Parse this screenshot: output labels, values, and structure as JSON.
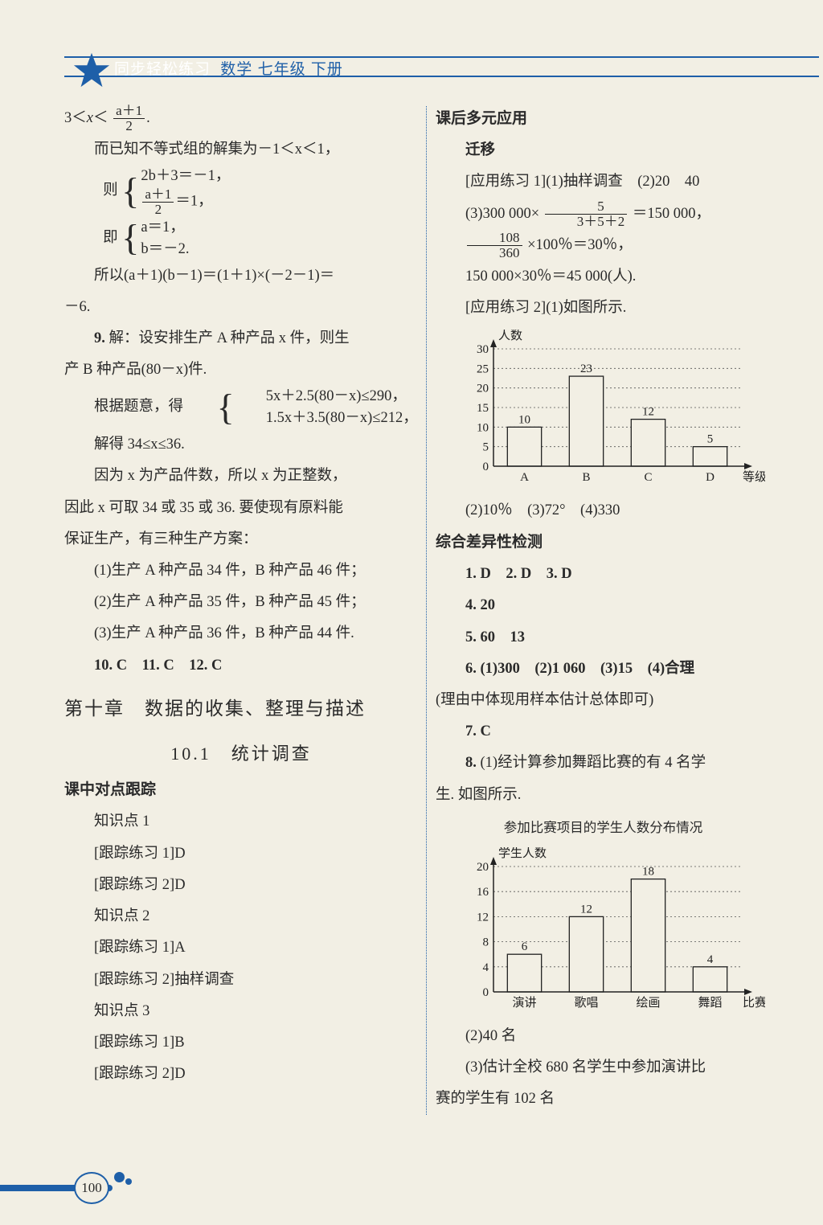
{
  "header": {
    "series": "同步轻松练习",
    "subject": "数学  七年级  下册"
  },
  "left": {
    "l1a": "3＜",
    "l1b": "＜",
    "l1c": ".",
    "frac1": {
      "num": "a＋1",
      "den": "2"
    },
    "l2": "而已知不等式组的解集为－1＜x＜1，",
    "l3_pre": "则",
    "l3_top": "2b＋3＝－1，",
    "l3_bot_pre": "",
    "frac2": {
      "num": "a＋1",
      "den": "2"
    },
    "l3_bot_post": "＝1，",
    "l4_pre": "即",
    "l4_top": "a＝1，",
    "l4_bot": "b＝－2.",
    "l5": "所以(a＋1)(b－1)＝(1＋1)×(－2－1)＝",
    "l5b": "－6.",
    "l6a": "9. ",
    "l6b": "解：设安排生产 A 种产品 x 件，则生",
    "l6c": "产 B 种产品(80－x)件.",
    "l7_pre": "根据题意，得",
    "l7_top": "5x＋2.5(80－x)≤290，",
    "l7_bot": "1.5x＋3.5(80－x)≤212，",
    "l8": "解得 34≤x≤36.",
    "l9": "因为 x 为产品件数，所以 x 为正整数，",
    "l10": "因此 x 可取 34 或 35 或 36. 要使现有原料能",
    "l11": "保证生产，有三种生产方案：",
    "l12": "(1)生产 A 种产品 34 件，B 种产品 46 件；",
    "l13": "(2)生产 A 种产品 35 件，B 种产品 45 件；",
    "l14": "(3)生产 A 种产品 36 件，B 种产品 44 件.",
    "l15": "10. C　11. C　12. C",
    "chapter": "第十章　数据的收集、整理与描述",
    "section": "10.1　统计调查",
    "sub1": "课中对点跟踪",
    "kp1": "知识点 1",
    "t1": "[跟踪练习 1]D",
    "t2": "[跟踪练习 2]D",
    "kp2": "知识点 2",
    "t3": "[跟踪练习 1]A",
    "t4": "[跟踪练习 2]抽样调查",
    "kp3": "知识点 3",
    "t5": "[跟踪练习 1]B",
    "t6": "[跟踪练习 2]D"
  },
  "right": {
    "sub1": "课后多元应用",
    "sub2": "迁移",
    "r1": "[应用练习 1](1)抽样调查　(2)20　40",
    "r2_pre": "(3)300 000×",
    "frac_r2": {
      "num": "5",
      "den": "3＋5＋2"
    },
    "r2_post": "＝150 000，",
    "frac_r3": {
      "num": "108",
      "den": "360"
    },
    "r3_post": "×100％＝30％，",
    "r4": "150 000×30％＝45 000(人).",
    "r5": "[应用练习 2](1)如图所示.",
    "chart1": {
      "type": "bar",
      "ylabel": "人数",
      "xlabel": "等级",
      "categories": [
        "A",
        "B",
        "C",
        "D"
      ],
      "values": [
        10,
        23,
        12,
        5
      ],
      "value_labels": [
        "10",
        "23",
        "12",
        "5"
      ],
      "yticks": [
        0,
        5,
        10,
        15,
        20,
        25,
        30
      ],
      "ymax": 30,
      "bar_fill": "#f2efe4",
      "bar_stroke": "#222222",
      "axis_color": "#222222",
      "grid_style": "dotted",
      "font_size": 15
    },
    "r6": "(2)10％　(3)72°　(4)330",
    "sub3": "综合差异性检测",
    "r7": "1. D　2. D　3. D",
    "r8": "4. 20",
    "r9": "5. 60　13",
    "r10": "6. (1)300　(2)1 060　(3)15　(4)合理",
    "r11": "(理由中体现用样本估计总体即可)",
    "r12": "7. C",
    "r13a": "8. ",
    "r13b": "(1)经计算参加舞蹈比赛的有 4 名学",
    "r13c": "生. 如图所示.",
    "chart2": {
      "type": "bar",
      "title": "参加比赛项目的学生人数分布情况",
      "ylabel": "学生人数",
      "xlabel": "比赛项目",
      "categories": [
        "演讲",
        "歌唱",
        "绘画",
        "舞蹈"
      ],
      "values": [
        6,
        12,
        18,
        4
      ],
      "value_labels": [
        "6",
        "12",
        "18",
        "4"
      ],
      "yticks": [
        0,
        4,
        8,
        12,
        16,
        20
      ],
      "ymax": 20,
      "bar_fill": "#f2efe4",
      "bar_stroke": "#222222",
      "axis_color": "#222222",
      "grid_style": "dotted",
      "font_size": 15
    },
    "r14": "(2)40 名",
    "r15": "(3)估计全校 680 名学生中参加演讲比",
    "r16": "赛的学生有 102 名"
  },
  "page_number": "100"
}
